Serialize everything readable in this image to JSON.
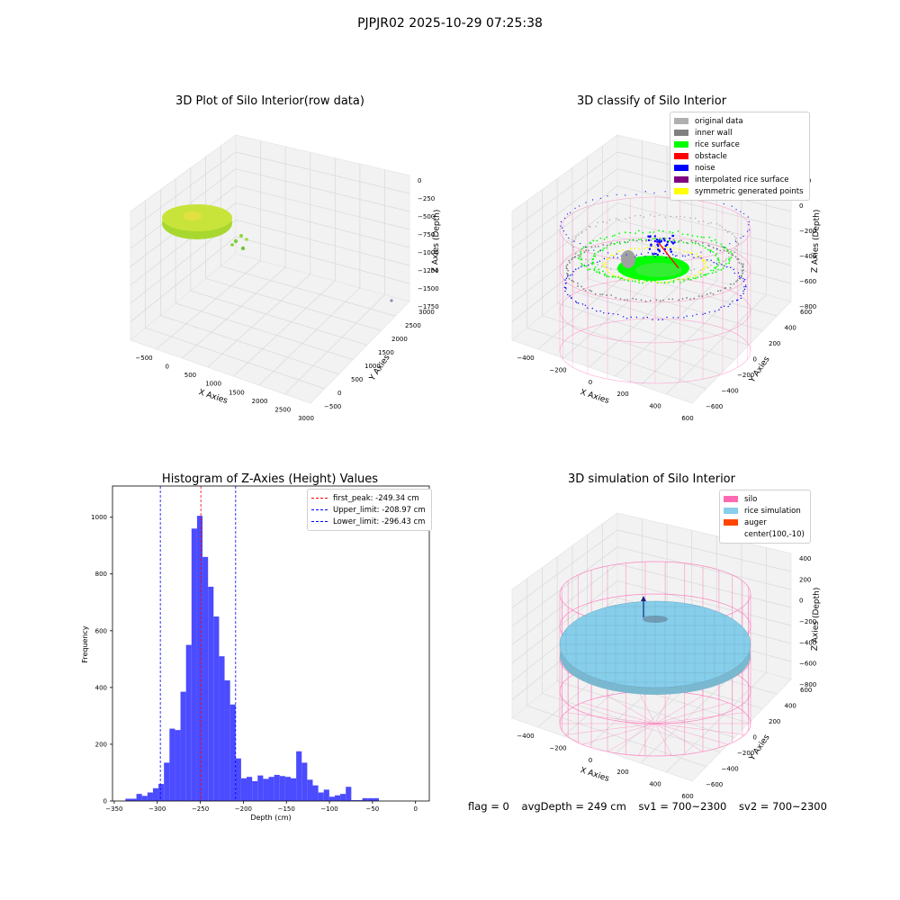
{
  "figure": {
    "suptitle": "PJPJR02 2025-10-29 07:25:38",
    "status": {
      "flag": "flag = 0",
      "avg_depth": "avgDepth = 249 cm",
      "sv1": "sv1 = 700~2300",
      "sv2": "sv2 = 700~2300"
    }
  },
  "colors": {
    "original_data": "#b0b0b0",
    "inner_wall": "#808080",
    "rice_surface": "#00ff00",
    "obstacle": "#ff0000",
    "noise": "#0000ff",
    "interpolated_rice_surface": "#800080",
    "symmetric_generated_points": "#ffff00",
    "silo": "#ff69b4",
    "rice_simulation": "#87ceeb",
    "auger": "#ff4500",
    "histogram_bar": "#4b4bff",
    "first_peak_line": "#ff0000",
    "limit_line": "#0000ff"
  },
  "chart_data": [
    {
      "type": "scatter",
      "subtype": "3d",
      "title": "3D Plot of Silo Interior(row data)",
      "xlabel": "X Axies",
      "ylabel": "Y Axies",
      "zlabel": "Z Axies (Depth)",
      "x_ticks": [
        "−500",
        "0",
        "500",
        "1000",
        "1500",
        "2000",
        "2500",
        "3000"
      ],
      "y_ticks": [
        "−500",
        "0",
        "500",
        "1000",
        "1500",
        "2000",
        "2500",
        "3000"
      ],
      "z_ticks": [
        "0",
        "−250",
        "−500",
        "−750",
        "−1000",
        "−1250",
        "−1500",
        "−1750"
      ],
      "grid": true
    },
    {
      "type": "scatter",
      "subtype": "3d",
      "title": "3D classify of Silo Interior",
      "xlabel": "X Axies",
      "ylabel": "Y Axies",
      "zlabel": "Z Axies (Depth)",
      "x_ticks": [
        "−400",
        "−200",
        "0",
        "200",
        "400",
        "600"
      ],
      "y_ticks": [
        "−600",
        "−400",
        "−200",
        "0",
        "200",
        "400",
        "600"
      ],
      "z_ticks": [
        "200",
        "0",
        "−200",
        "−400",
        "−600",
        "−800"
      ],
      "z_ticks_partial": "00",
      "legend_position": "top-right",
      "legend": [
        {
          "label": "original data",
          "color_key": "original_data"
        },
        {
          "label": "inner wall",
          "color_key": "inner_wall"
        },
        {
          "label": "rice surface",
          "color_key": "rice_surface"
        },
        {
          "label": "obstacle",
          "color_key": "obstacle"
        },
        {
          "label": "noise",
          "color_key": "noise"
        },
        {
          "label": "interpolated rice surface",
          "color_key": "interpolated_rice_surface"
        },
        {
          "label": "symmetric generated points",
          "color_key": "symmetric_generated_points"
        }
      ],
      "grid": true
    },
    {
      "type": "bar",
      "subtype": "histogram",
      "title": "Histogram of Z-Axies (Height) Values",
      "xlabel": "Depth (cm)",
      "ylabel": "Frequency",
      "xlim": [
        -352,
        16
      ],
      "ylim": [
        0,
        1110
      ],
      "x_ticks": [
        -350,
        -300,
        -250,
        -200,
        -150,
        -100,
        -50,
        0
      ],
      "x_tick_labels": [
        "−350",
        "−300",
        "−250",
        "−200",
        "−150",
        "−100",
        "−50",
        "0"
      ],
      "y_ticks": [
        0,
        200,
        400,
        600,
        800,
        1000
      ],
      "bin_start": -337,
      "bin_width": 6.4,
      "values": [
        8,
        8,
        25,
        18,
        30,
        45,
        60,
        135,
        255,
        250,
        385,
        550,
        960,
        1005,
        860,
        755,
        650,
        510,
        425,
        340,
        150,
        80,
        85,
        70,
        90,
        78,
        85,
        92,
        88,
        85,
        80,
        175,
        135,
        75,
        55,
        30,
        40,
        15,
        20,
        25,
        50,
        3,
        3,
        10,
        10,
        10
      ],
      "vlines": [
        {
          "x": -249.34,
          "label": "first_peak: -249.34 cm",
          "color_key": "first_peak_line"
        },
        {
          "x": -208.97,
          "label": "Upper_limit: -208.97 cm",
          "color_key": "limit_line"
        },
        {
          "x": -296.43,
          "label": "Lower_limit: -296.43 cm",
          "color_key": "limit_line"
        }
      ],
      "legend_position": "top-right",
      "grid": false
    },
    {
      "type": "scatter",
      "subtype": "3d-surface",
      "title": "3D simulation of Silo Interior",
      "xlabel": "X Axies",
      "ylabel": "Y Axies",
      "zlabel": "Z Axies (Depth)",
      "x_ticks": [
        "−400",
        "−200",
        "0",
        "200",
        "400",
        "600"
      ],
      "y_ticks": [
        "−600",
        "−400",
        "−200",
        "0",
        "200",
        "400",
        "600"
      ],
      "z_ticks": [
        "400",
        "200",
        "0",
        "−200",
        "−400",
        "−600",
        "−800"
      ],
      "legend_position": "top-right",
      "legend": [
        {
          "label": "silo",
          "color_key": "silo"
        },
        {
          "label": "rice simulation",
          "color_key": "rice_simulation"
        },
        {
          "label": "auger",
          "color_key": "auger"
        },
        {
          "label": "center(100,-10)",
          "color_key": ""
        }
      ],
      "grid": true
    }
  ]
}
